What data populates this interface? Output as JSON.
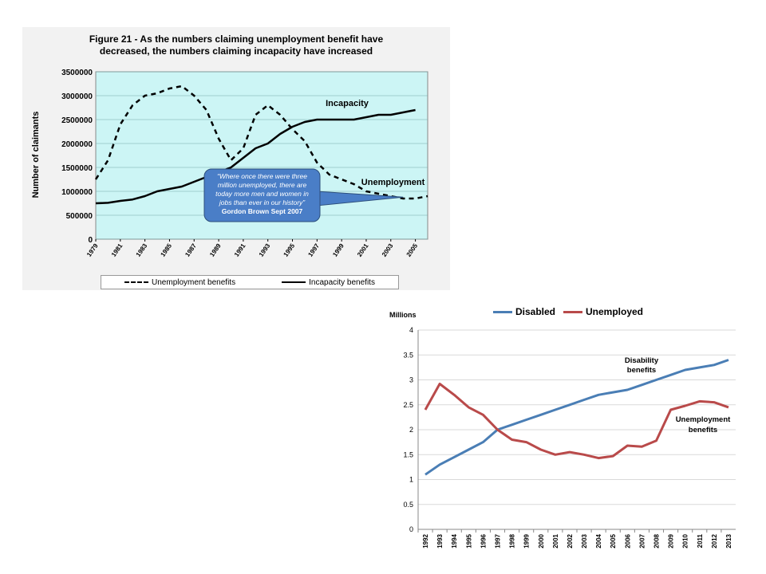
{
  "chart_data": [
    {
      "type": "line",
      "title_lines": [
        "Figure 21 - As the numbers claiming unemployment benefit have",
        "decreased, the numbers claiming incapacity have increased"
      ],
      "ylabel": "Number of claimants",
      "xlabel": "",
      "ylim": [
        0,
        3500000
      ],
      "y_ticks": [
        "0",
        "500000",
        "1000000",
        "1500000",
        "2000000",
        "2500000",
        "3000000",
        "3500000"
      ],
      "x_range": [
        1979,
        2006
      ],
      "x_ticks": [
        "1979",
        "1981",
        "1983",
        "1985",
        "1987",
        "1989",
        "1991",
        "1993",
        "1995",
        "1997",
        "1999",
        "2001",
        "2003",
        "2005"
      ],
      "grid": true,
      "plot_bg": "#ccf5f5",
      "series": [
        {
          "name": "Unemployment benefits",
          "style": "dashed",
          "color": "#000000",
          "x": [
            1979,
            1980,
            1981,
            1982,
            1983,
            1984,
            1985,
            1986,
            1987,
            1988,
            1989,
            1990,
            1991,
            1992,
            1993,
            1994,
            1995,
            1996,
            1997,
            1998,
            1999,
            2000,
            2001,
            2002,
            2003,
            2004,
            2005,
            2006
          ],
          "values": [
            1250000,
            1650000,
            2400000,
            2800000,
            3000000,
            3050000,
            3150000,
            3200000,
            3000000,
            2700000,
            2100000,
            1650000,
            1900000,
            2600000,
            2800000,
            2600000,
            2300000,
            2050000,
            1600000,
            1350000,
            1250000,
            1150000,
            1000000,
            950000,
            900000,
            850000,
            850000,
            900000
          ]
        },
        {
          "name": "Incapacity benefits",
          "style": "solid",
          "color": "#000000",
          "x": [
            1979,
            1980,
            1981,
            1982,
            1983,
            1984,
            1985,
            1986,
            1987,
            1988,
            1989,
            1990,
            1991,
            1992,
            1993,
            1994,
            1995,
            1996,
            1997,
            1998,
            1999,
            2000,
            2001,
            2002,
            2003,
            2004,
            2005
          ],
          "values": [
            750000,
            760000,
            800000,
            830000,
            900000,
            1000000,
            1050000,
            1100000,
            1200000,
            1300000,
            1400000,
            1500000,
            1700000,
            1900000,
            2000000,
            2200000,
            2350000,
            2450000,
            2500000,
            2500000,
            2500000,
            2500000,
            2550000,
            2600000,
            2600000,
            2650000,
            2700000
          ]
        }
      ],
      "annotations": {
        "incapacity": "Incapacity",
        "unemployment": "Unemployment",
        "quote_lines": [
          "“Where once there were three",
          "million unemployed, there are",
          "today more men and women in",
          "jobs than ever in our history”"
        ],
        "quote_author": "Gordon Brown Sept 2007"
      },
      "legend": {
        "placement": "bottom",
        "items": [
          {
            "label": "Unemployment benefits",
            "style": "dashed"
          },
          {
            "label": "Incapacity benefits",
            "style": "solid"
          }
        ]
      },
      "callout_color": "#4a7ec7"
    },
    {
      "type": "line",
      "ylabel": "Millions",
      "xlabel": "",
      "ylim": [
        0,
        4
      ],
      "y_ticks": [
        "0",
        "0.5",
        "1",
        "1.5",
        "2",
        "2.5",
        "3",
        "3.5",
        "4"
      ],
      "categories": [
        "1992",
        "1993",
        "1994",
        "1995",
        "1996",
        "1997",
        "1998",
        "1999",
        "2000",
        "2001",
        "2002",
        "2003",
        "2004",
        "2005",
        "2006",
        "2007",
        "2008",
        "2009",
        "2010",
        "2011",
        "2012",
        "2013"
      ],
      "grid": true,
      "series": [
        {
          "name": "Disabled",
          "color": "#4a7eb5",
          "values": [
            1.1,
            1.3,
            1.45,
            1.6,
            1.75,
            2.0,
            2.1,
            2.2,
            2.3,
            2.4,
            2.5,
            2.6,
            2.7,
            2.75,
            2.8,
            2.9,
            3.0,
            3.1,
            3.2,
            3.25,
            3.3,
            3.4
          ]
        },
        {
          "name": "Unemployed",
          "color": "#b94a4a",
          "values": [
            2.4,
            2.92,
            2.7,
            2.45,
            2.3,
            2.0,
            1.8,
            1.75,
            1.6,
            1.5,
            1.55,
            1.5,
            1.43,
            1.47,
            1.68,
            1.66,
            1.78,
            2.4,
            2.48,
            2.57,
            2.55,
            2.45
          ]
        }
      ],
      "annotations": {
        "disability_lines": [
          "Disability",
          "benefits"
        ],
        "unemployment_lines": [
          "Unemployment",
          "benefits"
        ]
      },
      "legend": {
        "placement": "top"
      }
    }
  ]
}
